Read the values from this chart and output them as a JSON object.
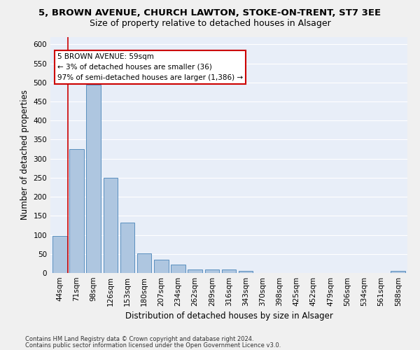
{
  "title_line1": "5, BROWN AVENUE, CHURCH LAWTON, STOKE-ON-TRENT, ST7 3EE",
  "title_line2": "Size of property relative to detached houses in Alsager",
  "xlabel": "Distribution of detached houses by size in Alsager",
  "ylabel": "Number of detached properties",
  "categories": [
    "44sqm",
    "71sqm",
    "98sqm",
    "126sqm",
    "153sqm",
    "180sqm",
    "207sqm",
    "234sqm",
    "262sqm",
    "289sqm",
    "316sqm",
    "343sqm",
    "370sqm",
    "398sqm",
    "425sqm",
    "452sqm",
    "479sqm",
    "506sqm",
    "534sqm",
    "561sqm",
    "588sqm"
  ],
  "values": [
    97,
    325,
    495,
    250,
    133,
    51,
    35,
    22,
    10,
    10,
    10,
    5,
    0,
    0,
    0,
    0,
    0,
    0,
    0,
    0,
    5
  ],
  "bar_color": "#aec6e0",
  "bar_edge_color": "#5a8fbf",
  "annotation_text": "5 BROWN AVENUE: 59sqm\n← 3% of detached houses are smaller (36)\n97% of semi-detached houses are larger (1,386) →",
  "annotation_box_color": "#ffffff",
  "annotation_box_edge_color": "#cc0000",
  "ylim": [
    0,
    620
  ],
  "yticks": [
    0,
    50,
    100,
    150,
    200,
    250,
    300,
    350,
    400,
    450,
    500,
    550,
    600
  ],
  "footnote1": "Contains HM Land Registry data © Crown copyright and database right 2024.",
  "footnote2": "Contains public sector information licensed under the Open Government Licence v3.0.",
  "background_color": "#e8eef8",
  "grid_color": "#ffffff",
  "fig_background": "#f0f0f0",
  "title_fontsize": 9.5,
  "subtitle_fontsize": 9,
  "label_fontsize": 8.5,
  "tick_fontsize": 7.5,
  "footnote_fontsize": 6.0
}
